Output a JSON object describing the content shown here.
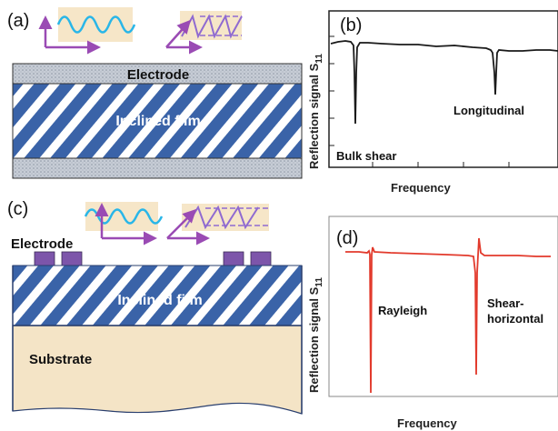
{
  "colors": {
    "stripe_blue": "#3a63a8",
    "electrode_gray": "#c7cdd6",
    "substrate": "#f4e4c6",
    "wave_box": "#f6e6c8",
    "wave_cyan": "#29b6e8",
    "arrow_purple": "#9a4bb4",
    "shear_line": "#8f6ad1",
    "bulk_trace": "#1a1a1a",
    "saw_trace": "#e23a2c",
    "pad_purple": "#7d55aa"
  },
  "panel_a": {
    "label": "(a)",
    "electrode_label": "Electrode",
    "film_label": "Inclined film"
  },
  "panel_b": {
    "label": "(b)",
    "ylabel": "Reflection signal S",
    "ylabel_sub": "11",
    "xlabel": "Frequency",
    "peak1_label": "Bulk shear",
    "peak2_label": "Longitudinal"
  },
  "panel_c": {
    "label": "(c)",
    "electrode_label": "Electrode",
    "film_label": "Inclined film",
    "substrate_label": "Substrate"
  },
  "panel_d": {
    "label": "(d)",
    "ylabel": "Reflection signal S",
    "ylabel_sub": "11",
    "xlabel": "Frequency",
    "peak1_label": "Rayleigh",
    "peak2_label": "Shear-",
    "peak2_label_line2": "horizontal"
  }
}
